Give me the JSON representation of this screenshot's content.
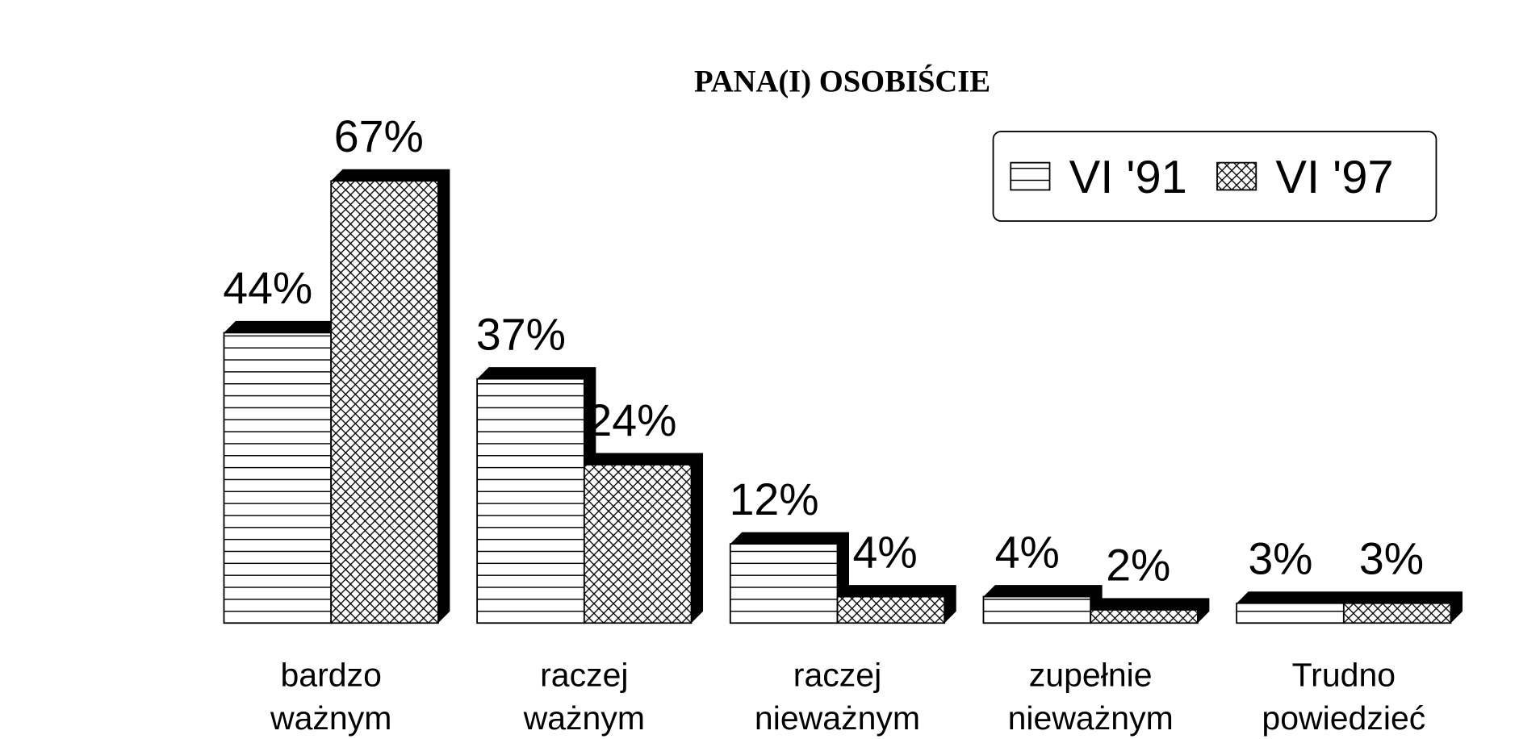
{
  "chart_data": {
    "type": "bar",
    "title": "PANA(I) OSOBIŚCIE",
    "categories": [
      "bardzo\nważnym",
      "raczej\nważnym",
      "raczej\nnieważnym",
      "zupełnie\nnieważnym",
      "Trudno\npowiedzieć"
    ],
    "series": [
      {
        "name": "VI '91",
        "color": "#000000",
        "pattern": "horizontal",
        "values": [
          44,
          37,
          12,
          4,
          3
        ],
        "value_labels": [
          "44%",
          "37%",
          "12%",
          "4%",
          "3%"
        ]
      },
      {
        "name": "VI '97",
        "color": "#000000",
        "pattern": "crosshatch",
        "values": [
          67,
          24,
          4,
          2,
          3
        ],
        "value_labels": [
          "67%",
          "24%",
          "4%",
          "2%",
          "3%"
        ]
      }
    ],
    "legend": "top-right"
  }
}
